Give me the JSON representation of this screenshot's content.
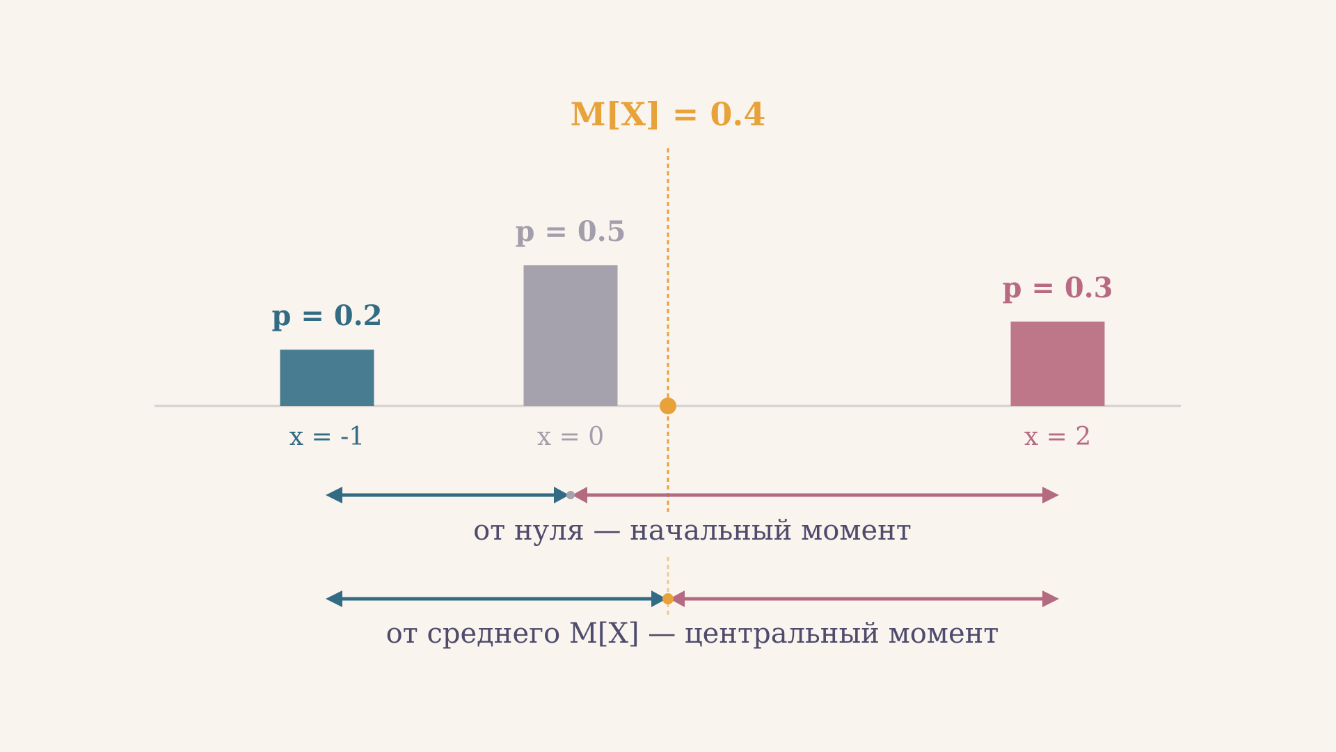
{
  "chart_data": {
    "type": "bar",
    "categories": [
      "x = -1",
      "x = 0",
      "x = 2"
    ],
    "x": [
      -1,
      0,
      2
    ],
    "values": [
      0.2,
      0.5,
      0.3
    ],
    "value_labels": [
      "p = 0.2",
      "p = 0.5",
      "p = 0.3"
    ],
    "xlim": [
      -2.5,
      2.5
    ],
    "ylim": [
      0,
      0.5
    ],
    "grid": false,
    "mean": {
      "value": 0.4,
      "label": "M[X] = 0.4"
    },
    "annotations": [
      {
        "from": 0,
        "label": "от нуля — начальный момент"
      },
      {
        "from": 0.4,
        "label": "от среднего  M[X] — центральный момент"
      }
    ]
  },
  "colors": {
    "background": "#FAF4EE",
    "axis": "#D4D0CD",
    "bar1": "#477C91",
    "bar2": "#A5A1AD",
    "bar3": "#BD7789",
    "arrow_left": "#326B84",
    "arrow_right": "#B46A80",
    "mean": "#E8A23A",
    "text": "#4E4B6C",
    "label1": "#326B84",
    "label2": "#A29EAB",
    "label3": "#B76A81"
  }
}
